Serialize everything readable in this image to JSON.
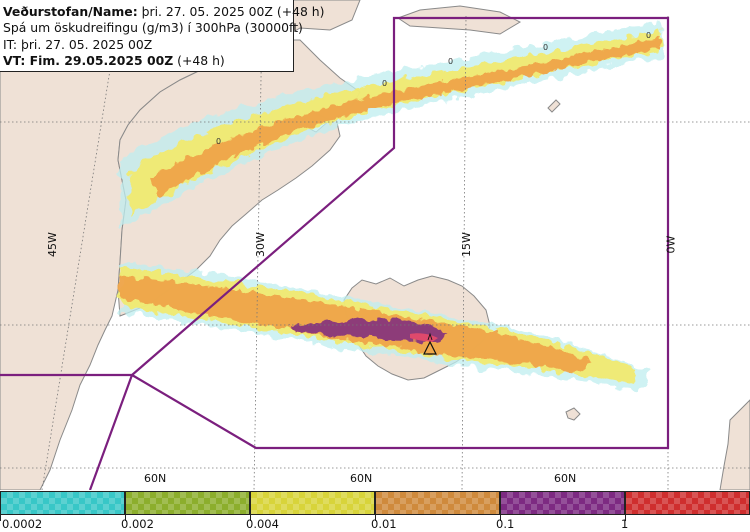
{
  "header": {
    "line1_label": "Veðurstofan/Name:",
    "line1_value": "þri. 27. 05. 2025 00Z (+48 h)",
    "line2": "Spá um öskudreifingu (g/m3) í 300hPa (30000ft)",
    "line3": "IT: þri. 27. 05. 2025 00Z",
    "line4_label": "VT: Fim. 29.05.2025 00Z",
    "line4_value": "(+48 h)"
  },
  "map": {
    "longitude_labels": [
      "45W",
      "30W",
      "15W",
      "0W"
    ],
    "latitude_labels": [
      "60N",
      "60N",
      "60N"
    ],
    "contour_labels": [
      "0",
      "0",
      "0",
      "0",
      "0"
    ],
    "volcano_icon": "volcano-triangle-icon",
    "colors": {
      "land": "#efe1d6",
      "sea": "#ffffff",
      "coast": "#8a8a8a",
      "boundary": "#7b1f7e",
      "graticule": "#777777"
    }
  },
  "legend": {
    "tick_labels": [
      "0.0002",
      "0.002",
      "0.004",
      "0.01",
      "0.1",
      "1"
    ],
    "colors": [
      "#38c7c7",
      "#8cae2c",
      "#d8d43a",
      "#cf8a3c",
      "#7d2a82",
      "#cf2e2e"
    ]
  }
}
